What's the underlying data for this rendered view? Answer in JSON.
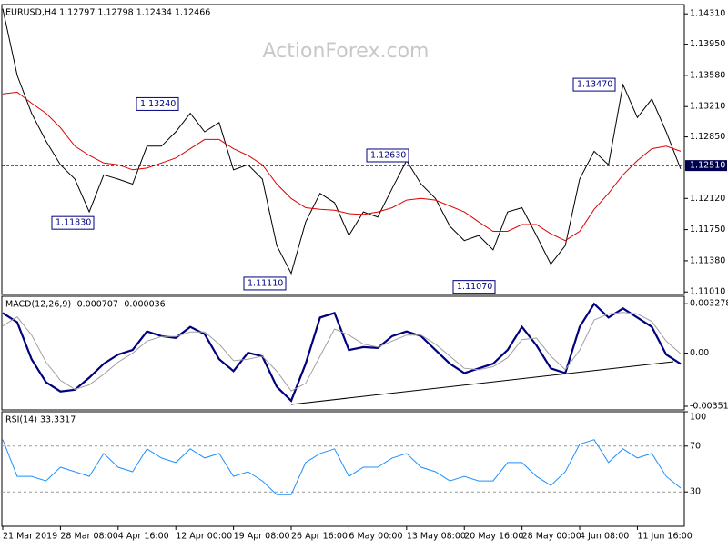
{
  "chart_data": [
    {
      "type": "line",
      "title": "EURUSD,H4  1.12797 1.12798 1.12434 1.12466",
      "watermark": "ActionForex.com",
      "categories": [
        "21 Mar 2019",
        null,
        null,
        null,
        "28 Mar 08:00",
        null,
        null,
        null,
        "4 Apr 16:00",
        null,
        null,
        null,
        "12 Apr 00:00",
        null,
        null,
        null,
        "19 Apr 08:00",
        null,
        null,
        null,
        "26 Apr 16:00",
        null,
        null,
        null,
        "6 May 00:00",
        null,
        null,
        null,
        "13 May 08:00",
        null,
        null,
        null,
        "20 May 16:00",
        null,
        null,
        null,
        "28 May 00:00",
        null,
        null,
        null,
        "4 Jun 08:00",
        null,
        null,
        null,
        "11 Jun 16:00",
        null,
        null,
        null
      ],
      "series": [
        {
          "name": "EURUSD",
          "color": "#000000",
          "values": [
            1.1437,
            1.1358,
            1.1313,
            1.128,
            1.1252,
            1.1235,
            1.1196,
            1.124,
            1.1235,
            1.1229,
            1.1274,
            1.1274,
            1.1291,
            1.1313,
            1.1291,
            1.1302,
            1.1246,
            1.1252,
            1.1235,
            1.1156,
            1.1123,
            1.1184,
            1.1218,
            1.1207,
            1.1168,
            1.1196,
            1.119,
            1.1224,
            1.1257,
            1.1229,
            1.1212,
            1.1179,
            1.1162,
            1.1168,
            1.1151,
            1.1196,
            1.1201,
            1.1168,
            1.1134,
            1.1156,
            1.1235,
            1.1268,
            1.1252,
            1.1347,
            1.1308,
            1.133,
            1.1291,
            1.1247
          ]
        },
        {
          "name": "MA",
          "color": "#e00000",
          "values": [
            1.1336,
            1.1338,
            1.1325,
            1.1313,
            1.1296,
            1.1274,
            1.1263,
            1.1254,
            1.1252,
            1.1246,
            1.1248,
            1.1254,
            1.126,
            1.1271,
            1.1282,
            1.1282,
            1.1271,
            1.1263,
            1.1252,
            1.1229,
            1.1212,
            1.1201,
            1.1199,
            1.1198,
            1.1194,
            1.1193,
            1.1196,
            1.1201,
            1.121,
            1.1212,
            1.121,
            1.1203,
            1.1196,
            1.1184,
            1.1173,
            1.1173,
            1.1181,
            1.1181,
            1.117,
            1.1162,
            1.1173,
            1.1199,
            1.1218,
            1.124,
            1.1257,
            1.1271,
            1.1274,
            1.1268
          ]
        }
      ],
      "ylim": [
        1.1098,
        1.1442
      ],
      "yticks": [
        {
          "value": 1.1431,
          "label": "1.14310"
        },
        {
          "value": 1.1395,
          "label": "1.13950"
        },
        {
          "value": 1.1358,
          "label": "1.13580"
        },
        {
          "value": 1.1321,
          "label": "1.13210"
        },
        {
          "value": 1.1285,
          "label": "1.12850"
        },
        {
          "value": 1.1212,
          "label": "1.12120"
        },
        {
          "value": 1.1175,
          "label": "1.11750"
        },
        {
          "value": 1.1138,
          "label": "1.11380"
        },
        {
          "value": 1.1101,
          "label": "1.11010"
        }
      ],
      "current_price": {
        "value": 1.1251,
        "label": "1.12510"
      },
      "annotations": [
        {
          "value": 1.1324,
          "label": "1.13240"
        },
        {
          "value": 1.1183,
          "label": "1.11830"
        },
        {
          "value": 1.1111,
          "label": "1.11110"
        },
        {
          "value": 1.1263,
          "label": "1.12630"
        },
        {
          "value": 1.1107,
          "label": "1.11070"
        },
        {
          "value": 1.1347,
          "label": "1.13470"
        }
      ],
      "grid": false
    },
    {
      "type": "line",
      "title": "MACD(12,26,9) -0.000707 -0.000036",
      "series": [
        {
          "name": "MACD",
          "color": "#000080",
          "values": [
            0.00266,
            0.00205,
            -0.0004,
            -0.00193,
            -0.00254,
            -0.00242,
            -0.00162,
            -0.0007,
            -9e-05,
            0.00021,
            0.00144,
            0.00113,
            0.00101,
            0.00174,
            0.00126,
            -0.0004,
            -0.00119,
            3e-05,
            -0.00021,
            -0.00223,
            -0.00315,
            -0.0007,
            0.00236,
            0.00266,
            0.00021,
            0.0004,
            0.00034,
            0.00113,
            0.00144,
            0.00113,
            0.00021,
            -0.0007,
            -0.00132,
            -0.00101,
            -0.0007,
            0.00021,
            0.00174,
            0.00052,
            -0.00101,
            -0.00132,
            0.00174,
            0.00327,
            0.00236,
            0.00297,
            0.00236,
            0.00174,
            -9e-05,
            -0.00071
          ]
        },
        {
          "name": "Signal",
          "color": "#a0a0a0",
          "values": [
            0.0018,
            0.0024,
            0.0012,
            -0.0006,
            -0.0018,
            -0.0024,
            -0.0021,
            -0.0014,
            -0.0006,
            0.0,
            0.0008,
            0.0011,
            0.0011,
            0.0014,
            0.0014,
            0.0006,
            -0.0005,
            -0.0004,
            -0.0002,
            -0.0012,
            -0.0025,
            -0.002,
            -0.0002,
            0.0016,
            0.0012,
            0.0006,
            0.0004,
            0.0008,
            0.0012,
            0.0012,
            0.0006,
            -0.0002,
            -0.001,
            -0.0011,
            -0.0009,
            -0.0003,
            0.0009,
            0.001,
            -0.0002,
            -0.0011,
            0.0002,
            0.0022,
            0.0026,
            0.0027,
            0.0026,
            0.0021,
            0.0008,
            -4e-05
          ]
        }
      ],
      "ylim": [
        -0.00376,
        0.00377
      ],
      "yticks": [
        0.003278,
        {
          "value": 0,
          "label": "0.00"
        },
        -0.003519
      ],
      "grid": false
    },
    {
      "type": "line",
      "title": "RSI(14) 33.3317",
      "series": [
        {
          "name": "RSI",
          "color": "#1e90ff",
          "values": [
            75.6,
            43.6,
            43.6,
            39.6,
            51.6,
            47.6,
            43.6,
            63.6,
            51.6,
            47.6,
            67.6,
            59.6,
            55.6,
            67.6,
            59.6,
            63.6,
            43.6,
            47.6,
            39.6,
            27.6,
            27.6,
            55.6,
            63.6,
            67.6,
            43.6,
            51.6,
            51.6,
            59.6,
            63.6,
            51.6,
            47.6,
            39.6,
            43.6,
            39.6,
            39.6,
            55.6,
            55.6,
            43.6,
            35.6,
            47.6,
            71.6,
            75.6,
            55.6,
            67.6,
            59.6,
            63.6,
            43.6,
            33.33
          ]
        }
      ],
      "ylim": [
        0,
        100
      ],
      "yticks": [
        100,
        70,
        30
      ],
      "grid": true
    }
  ]
}
